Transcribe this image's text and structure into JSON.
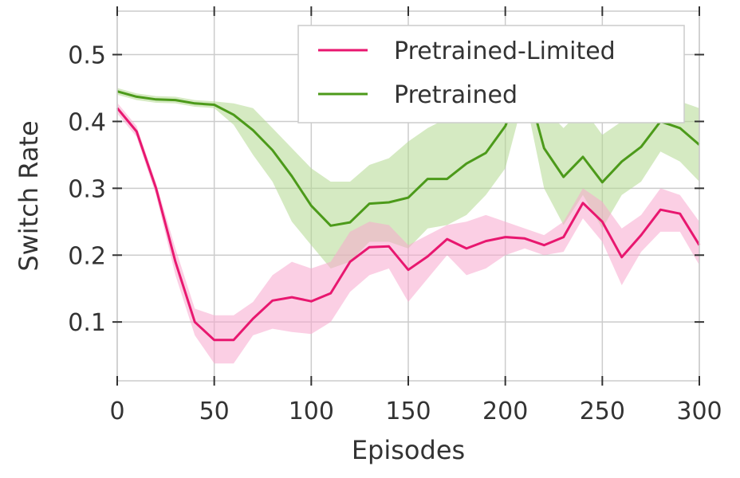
{
  "chart_data": {
    "type": "line",
    "xlabel": "Episodes",
    "ylabel": "Switch Rate",
    "xlim": [
      0,
      300
    ],
    "ylim": [
      0.012,
      0.565
    ],
    "xticks": [
      0,
      50,
      100,
      150,
      200,
      250,
      300
    ],
    "yticks": [
      0.1,
      0.2,
      0.3,
      0.4,
      0.5
    ],
    "xtick_labels": [
      "0",
      "50",
      "100",
      "150",
      "200",
      "250",
      "300"
    ],
    "ytick_labels": [
      "0.1",
      "0.2",
      "0.3",
      "0.4",
      "0.5"
    ],
    "grid": true,
    "legend_position": "top-right",
    "x": [
      0,
      10,
      20,
      30,
      40,
      50,
      60,
      70,
      80,
      90,
      100,
      110,
      120,
      130,
      140,
      150,
      160,
      170,
      180,
      190,
      200,
      210,
      220,
      230,
      240,
      250,
      260,
      270,
      280,
      290,
      300
    ],
    "series": [
      {
        "name": "Pretrained-Limited",
        "color": "#e8176f",
        "band_color": "#f7a8cd",
        "values": [
          0.42,
          0.385,
          0.3,
          0.19,
          0.1,
          0.073,
          0.073,
          0.105,
          0.132,
          0.137,
          0.131,
          0.143,
          0.19,
          0.212,
          0.213,
          0.178,
          0.198,
          0.224,
          0.21,
          0.221,
          0.227,
          0.225,
          0.215,
          0.227,
          0.278,
          0.25,
          0.197,
          0.23,
          0.268,
          0.262,
          0.215
        ],
        "upper": [
          0.428,
          0.393,
          0.308,
          0.21,
          0.12,
          0.11,
          0.11,
          0.13,
          0.17,
          0.19,
          0.18,
          0.19,
          0.235,
          0.25,
          0.245,
          0.215,
          0.23,
          0.245,
          0.25,
          0.26,
          0.25,
          0.24,
          0.23,
          0.25,
          0.3,
          0.28,
          0.24,
          0.26,
          0.3,
          0.29,
          0.25
        ],
        "lower": [
          0.412,
          0.377,
          0.29,
          0.17,
          0.08,
          0.038,
          0.038,
          0.08,
          0.09,
          0.085,
          0.082,
          0.1,
          0.145,
          0.17,
          0.18,
          0.13,
          0.165,
          0.2,
          0.17,
          0.18,
          0.2,
          0.21,
          0.2,
          0.205,
          0.255,
          0.22,
          0.155,
          0.205,
          0.235,
          0.235,
          0.185
        ]
      },
      {
        "name": "Pretrained",
        "color": "#4c9a1a",
        "band_color": "#b3d98f",
        "values": [
          0.445,
          0.437,
          0.433,
          0.432,
          0.427,
          0.425,
          0.41,
          0.387,
          0.357,
          0.318,
          0.274,
          0.244,
          0.249,
          0.277,
          0.279,
          0.286,
          0.314,
          0.314,
          0.337,
          0.353,
          0.393,
          0.467,
          0.36,
          0.317,
          0.347,
          0.309,
          0.34,
          0.362,
          0.4,
          0.39,
          0.365
        ],
        "upper": [
          0.45,
          0.442,
          0.438,
          0.437,
          0.432,
          0.43,
          0.427,
          0.42,
          0.39,
          0.36,
          0.33,
          0.31,
          0.31,
          0.335,
          0.345,
          0.37,
          0.39,
          0.405,
          0.42,
          0.42,
          0.45,
          0.475,
          0.42,
          0.39,
          0.42,
          0.38,
          0.4,
          0.41,
          0.44,
          0.43,
          0.42
        ],
        "lower": [
          0.44,
          0.432,
          0.428,
          0.427,
          0.422,
          0.42,
          0.395,
          0.35,
          0.31,
          0.25,
          0.215,
          0.18,
          0.19,
          0.22,
          0.22,
          0.21,
          0.24,
          0.245,
          0.26,
          0.29,
          0.33,
          0.44,
          0.3,
          0.245,
          0.29,
          0.24,
          0.29,
          0.31,
          0.355,
          0.34,
          0.31
        ]
      }
    ]
  }
}
